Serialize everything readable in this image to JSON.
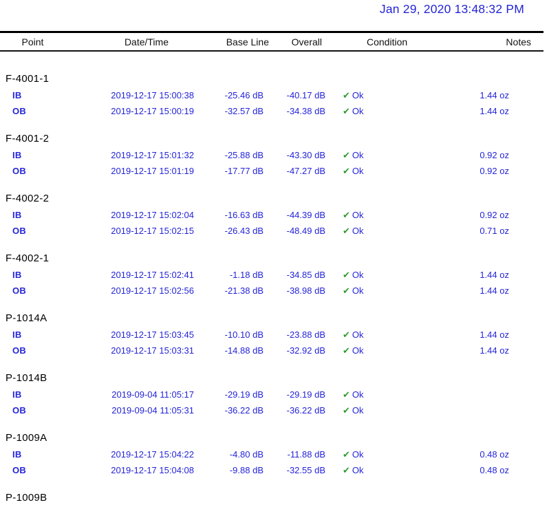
{
  "report_header": {
    "timestamp": "Jan 29, 2020  13:48:32 PM"
  },
  "glyphs": {
    "check": "✔"
  },
  "colors": {
    "link_blue": "#2424d8",
    "check_green": "#2f9b2f",
    "header_black": "#111111"
  },
  "table": {
    "columns": [
      "Point",
      "Date/Time",
      "Base Line",
      "Overall",
      "Condition",
      "Notes"
    ],
    "groups": [
      {
        "point": "F-4001-1",
        "rows": [
          {
            "dir": "IB",
            "datetime": "2019-12-17 15:00:38",
            "baseline": "-25.46 dB",
            "overall": "-40.17 dB",
            "condition": "Ok",
            "notes": "1.44 oz"
          },
          {
            "dir": "OB",
            "datetime": "2019-12-17 15:00:19",
            "baseline": "-32.57 dB",
            "overall": "-34.38 dB",
            "condition": "Ok",
            "notes": "1.44 oz"
          }
        ]
      },
      {
        "point": "F-4001-2",
        "rows": [
          {
            "dir": "IB",
            "datetime": "2019-12-17 15:01:32",
            "baseline": "-25.88 dB",
            "overall": "-43.30 dB",
            "condition": "Ok",
            "notes": "0.92 oz"
          },
          {
            "dir": "OB",
            "datetime": "2019-12-17 15:01:19",
            "baseline": "-17.77 dB",
            "overall": "-47.27 dB",
            "condition": "Ok",
            "notes": "0.92 oz"
          }
        ]
      },
      {
        "point": "F-4002-2",
        "rows": [
          {
            "dir": "IB",
            "datetime": "2019-12-17 15:02:04",
            "baseline": "-16.63 dB",
            "overall": "-44.39 dB",
            "condition": "Ok",
            "notes": "0.92 oz"
          },
          {
            "dir": "OB",
            "datetime": "2019-12-17 15:02:15",
            "baseline": "-26.43 dB",
            "overall": "-48.49 dB",
            "condition": "Ok",
            "notes": "0.71 oz"
          }
        ]
      },
      {
        "point": "F-4002-1",
        "rows": [
          {
            "dir": "IB",
            "datetime": "2019-12-17 15:02:41",
            "baseline": "-1.18 dB",
            "overall": "-34.85 dB",
            "condition": "Ok",
            "notes": "1.44 oz"
          },
          {
            "dir": "OB",
            "datetime": "2019-12-17 15:02:56",
            "baseline": "-21.38 dB",
            "overall": "-38.98 dB",
            "condition": "Ok",
            "notes": "1.44 oz"
          }
        ]
      },
      {
        "point": "P-1014A",
        "rows": [
          {
            "dir": "IB",
            "datetime": "2019-12-17 15:03:45",
            "baseline": "-10.10 dB",
            "overall": "-23.88 dB",
            "condition": "Ok",
            "notes": "1.44 oz"
          },
          {
            "dir": "OB",
            "datetime": "2019-12-17 15:03:31",
            "baseline": "-14.88 dB",
            "overall": "-32.92 dB",
            "condition": "Ok",
            "notes": "1.44 oz"
          }
        ]
      },
      {
        "point": "P-1014B",
        "rows": [
          {
            "dir": "IB",
            "datetime": "2019-09-04 11:05:17",
            "baseline": "-29.19 dB",
            "overall": "-29.19 dB",
            "condition": "Ok",
            "notes": ""
          },
          {
            "dir": "OB",
            "datetime": "2019-09-04 11:05:31",
            "baseline": "-36.22 dB",
            "overall": "-36.22 dB",
            "condition": "Ok",
            "notes": ""
          }
        ]
      },
      {
        "point": "P-1009A",
        "rows": [
          {
            "dir": "IB",
            "datetime": "2019-12-17 15:04:22",
            "baseline": "-4.80 dB",
            "overall": "-11.88 dB",
            "condition": "Ok",
            "notes": "0.48 oz"
          },
          {
            "dir": "OB",
            "datetime": "2019-12-17 15:04:08",
            "baseline": "-9.88 dB",
            "overall": "-32.55 dB",
            "condition": "Ok",
            "notes": "0.48 oz"
          }
        ]
      },
      {
        "point": "P-1009B",
        "rows": []
      }
    ]
  }
}
